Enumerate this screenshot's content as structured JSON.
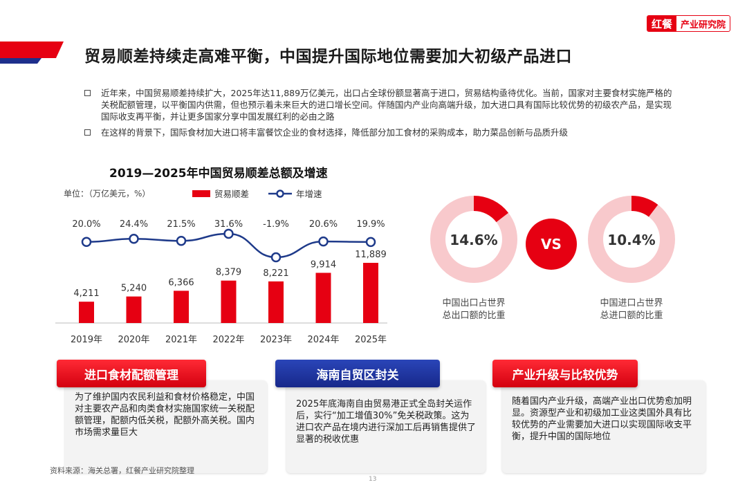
{
  "brand": {
    "mark": "红餐",
    "text": "产业研究院"
  },
  "title": "贸易顺差持续走高难平衡，中国提升国际地位需要加大初级产品进口",
  "bullets": [
    "近年来，中国贸易顺差持续扩大，2025年达11,889万亿美元，出口占全球份额显著高于进口，贸易结构亟待优化。当前，国家对主要食材实施严格的关税配额管理，以平衡国内供需，但也预示着未来巨大的进口增长空间。伴随国内产业向高端升级，加大进口具有国际比较优势的初级农产品，是实现国际收支再平衡，并让更多国家分享中国发展红利的必由之路",
    "在这样的背景下，国际食材加大进口将丰富餐饮企业的食材选择，降低部分加工食材的采购成本，助力菜品创新与品质升级"
  ],
  "chart_data": [
    {
      "type": "bar+line",
      "title": "2019—2025年中国贸易顺差总额及增速",
      "unit": "单位：（万亿美元，%）",
      "categories": [
        "2019年",
        "2020年",
        "2021年",
        "2022年",
        "2023年",
        "2024年",
        "2025年"
      ],
      "series": [
        {
          "name": "贸易顺差",
          "kind": "bar",
          "values": [
            4211,
            5240,
            6366,
            8379,
            8221,
            9914,
            11889
          ],
          "labels": [
            "4,211",
            "5,240",
            "6,366",
            "8,379",
            "8,221",
            "9,914",
            "11,889"
          ],
          "color": "#e60012"
        },
        {
          "name": "年增速",
          "kind": "line",
          "values": [
            20.0,
            24.4,
            21.5,
            31.6,
            -1.9,
            20.6,
            19.9
          ],
          "labels": [
            "20.0%",
            "24.4%",
            "21.5%",
            "31.6%",
            "-1.9%",
            "20.6%",
            "19.9%"
          ],
          "color": "#1e3a8a"
        }
      ],
      "bar_ylim": [
        0,
        14000
      ],
      "line_ylim": [
        -10,
        40
      ],
      "grid": false,
      "legend": "top"
    },
    {
      "type": "pie",
      "label": "14.6%",
      "value": 14.6,
      "caption": [
        "中国出口占世界",
        "总出口额的比重"
      ],
      "colors": {
        "value": "#e60012",
        "rest": "#f8c9cc"
      }
    },
    {
      "type": "pie",
      "label": "10.4%",
      "value": 10.4,
      "caption": [
        "中国进口占世界",
        "总进口额的比重"
      ],
      "colors": {
        "value": "#e60012",
        "rest": "#f8c9cc"
      }
    }
  ],
  "vs": "VS",
  "cards": [
    {
      "title": "进口食材配额管理",
      "color": "red",
      "body": "为了维护国内农民利益和食材价格稳定，中国对主要农产品和肉类食材实施国家统一关税配额管理，配额内低关税，配额外高关税。国内市场需求量巨大"
    },
    {
      "title": "海南自贸区封关",
      "color": "navy",
      "body": "2025年底海南自由贸易港正式全岛封关运作后，实行“加工增值30%”免关税政策。这为进口农产品在境内进行深加工后再销售提供了显著的税收优惠"
    },
    {
      "title": "产业升级与比较优势",
      "color": "red",
      "body": "随着国内产业升级，高端产业出口优势愈加明显。资源型产业和初级加工业这类国外具有比较优势的产业需要加大进口以实现国际收支平衡，提升中国的国际地位"
    }
  ],
  "source": "资料来源：海关总署，红餐产业研究院整理",
  "page": "13"
}
